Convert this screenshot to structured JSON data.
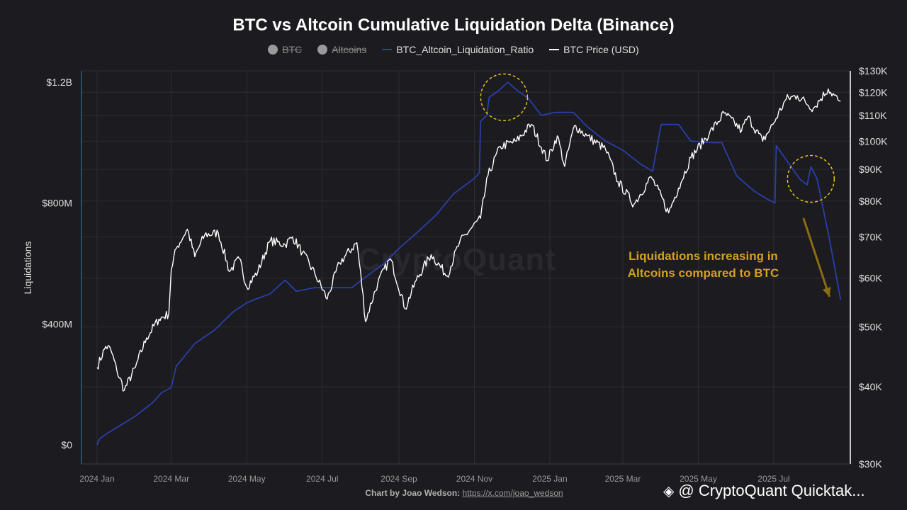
{
  "chart_data": {
    "type": "line",
    "title": "BTC vs Altcoin Cumulative Liquidation Delta (Binance)",
    "legend": [
      {
        "name": "BTC",
        "marker": "dot",
        "hidden": true,
        "color": "#9a9a9a"
      },
      {
        "name": "Altcoins",
        "marker": "dot",
        "hidden": true,
        "color": "#9a9a9a"
      },
      {
        "name": "BTC_Altcoin_Liquidation_Ratio",
        "marker": "line",
        "hidden": false,
        "color": "#2a3fa8"
      },
      {
        "name": "BTC Price (USD)",
        "marker": "line",
        "hidden": false,
        "color": "#ffffff"
      }
    ],
    "legend_position": "top-center",
    "ylabel_left": "Liquidations",
    "yticks_left": [
      {
        "label": "$1.2B",
        "value": 1200
      },
      {
        "label": "$800M",
        "value": 800
      },
      {
        "label": "$400M",
        "value": 400
      },
      {
        "label": "$0",
        "value": 0
      }
    ],
    "ylim_left": [
      0,
      1240
    ],
    "yticks_right": [
      {
        "label": "$130K",
        "value": 130000
      },
      {
        "label": "$120K",
        "value": 120000
      },
      {
        "label": "$110K",
        "value": 110000
      },
      {
        "label": "$100K",
        "value": 100000
      },
      {
        "label": "$90K",
        "value": 90000
      },
      {
        "label": "$80K",
        "value": 80000
      },
      {
        "label": "$70K",
        "value": 70000
      },
      {
        "label": "$60K",
        "value": 60000
      },
      {
        "label": "$50K",
        "value": 50000
      },
      {
        "label": "$40K",
        "value": 40000
      },
      {
        "label": "$30K",
        "value": 30000
      }
    ],
    "ylim_right": [
      30000,
      130000
    ],
    "y_right_scale": "log",
    "xticks": [
      {
        "label": "2024 Jan",
        "date": "2024-01-01"
      },
      {
        "label": "2024 Mar",
        "date": "2024-03-01"
      },
      {
        "label": "2024 May",
        "date": "2024-05-01"
      },
      {
        "label": "2024 Jul",
        "date": "2024-07-01"
      },
      {
        "label": "2024 Sep",
        "date": "2024-09-01"
      },
      {
        "label": "2024 Nov",
        "date": "2024-11-01"
      },
      {
        "label": "2025 Jan",
        "date": "2025-01-01"
      },
      {
        "label": "2025 Mar",
        "date": "2025-03-01"
      },
      {
        "label": "2025 May",
        "date": "2025-05-01"
      },
      {
        "label": "2025 Jul",
        "date": "2025-07-01"
      }
    ],
    "xlim": [
      "2024-01-01",
      "2025-08-25"
    ],
    "grid": true,
    "series": [
      {
        "name": "BTC_Altcoin_Liquidation_Ratio",
        "axis": "left",
        "color": "#2a3fa8",
        "points": [
          [
            "2024-01-01",
            0
          ],
          [
            "2024-01-03",
            20
          ],
          [
            "2024-01-10",
            40
          ],
          [
            "2024-01-20",
            65
          ],
          [
            "2024-02-01",
            95
          ],
          [
            "2024-02-15",
            140
          ],
          [
            "2024-02-22",
            172
          ],
          [
            "2024-03-01",
            190
          ],
          [
            "2024-03-05",
            260
          ],
          [
            "2024-03-20",
            335
          ],
          [
            "2024-04-05",
            380
          ],
          [
            "2024-04-20",
            440
          ],
          [
            "2024-05-01",
            470
          ],
          [
            "2024-05-10",
            485
          ],
          [
            "2024-05-20",
            500
          ],
          [
            "2024-06-01",
            545
          ],
          [
            "2024-06-10",
            508
          ],
          [
            "2024-06-25",
            520
          ],
          [
            "2024-07-01",
            520
          ],
          [
            "2024-07-25",
            520
          ],
          [
            "2024-08-05",
            555
          ],
          [
            "2024-08-20",
            600
          ],
          [
            "2024-09-01",
            650
          ],
          [
            "2024-09-15",
            700
          ],
          [
            "2024-10-01",
            760
          ],
          [
            "2024-10-15",
            830
          ],
          [
            "2024-11-01",
            882
          ],
          [
            "2024-11-05",
            900
          ],
          [
            "2024-11-06",
            1070
          ],
          [
            "2024-11-11",
            1090
          ],
          [
            "2024-11-13",
            1150
          ],
          [
            "2024-11-20",
            1170
          ],
          [
            "2024-11-28",
            1200
          ],
          [
            "2024-12-05",
            1175
          ],
          [
            "2024-12-15",
            1145
          ],
          [
            "2024-12-25",
            1090
          ],
          [
            "2025-01-05",
            1100
          ],
          [
            "2025-01-20",
            1100
          ],
          [
            "2025-02-01",
            1050
          ],
          [
            "2025-02-15",
            1005
          ],
          [
            "2025-03-01",
            975
          ],
          [
            "2025-03-15",
            930
          ],
          [
            "2025-03-25",
            905
          ],
          [
            "2025-04-01",
            1060
          ],
          [
            "2025-04-15",
            1060
          ],
          [
            "2025-04-25",
            1005
          ],
          [
            "2025-05-10",
            1000
          ],
          [
            "2025-05-20",
            1000
          ],
          [
            "2025-06-01",
            890
          ],
          [
            "2025-06-15",
            840
          ],
          [
            "2025-06-25",
            815
          ],
          [
            "2025-07-02",
            800
          ],
          [
            "2025-07-03",
            990
          ],
          [
            "2025-07-15",
            920
          ],
          [
            "2025-07-22",
            880
          ],
          [
            "2025-07-28",
            860
          ],
          [
            "2025-07-31",
            920
          ],
          [
            "2025-08-05",
            880
          ],
          [
            "2025-08-15",
            680
          ],
          [
            "2025-08-22",
            525
          ],
          [
            "2025-08-24",
            480
          ]
        ]
      },
      {
        "name": "BTC Price (USD)",
        "axis": "right",
        "color": "#ffffff",
        "points": [
          [
            "2024-01-01",
            43000
          ],
          [
            "2024-01-08",
            46500
          ],
          [
            "2024-01-12",
            46000
          ],
          [
            "2024-01-17",
            42500
          ],
          [
            "2024-01-23",
            39500
          ],
          [
            "2024-02-01",
            43000
          ],
          [
            "2024-02-10",
            48000
          ],
          [
            "2024-02-20",
            51500
          ],
          [
            "2024-02-28",
            52500
          ],
          [
            "2024-03-01",
            62000
          ],
          [
            "2024-03-05",
            67000
          ],
          [
            "2024-03-14",
            72000
          ],
          [
            "2024-03-20",
            65000
          ],
          [
            "2024-03-28",
            70500
          ],
          [
            "2024-04-08",
            71000
          ],
          [
            "2024-04-17",
            61500
          ],
          [
            "2024-04-25",
            64500
          ],
          [
            "2024-05-01",
            58000
          ],
          [
            "2024-05-10",
            61500
          ],
          [
            "2024-05-20",
            69000
          ],
          [
            "2024-06-01",
            68000
          ],
          [
            "2024-06-07",
            70000
          ],
          [
            "2024-06-15",
            66000
          ],
          [
            "2024-06-25",
            61000
          ],
          [
            "2024-07-05",
            55500
          ],
          [
            "2024-07-15",
            63500
          ],
          [
            "2024-07-29",
            68500
          ],
          [
            "2024-08-05",
            51000
          ],
          [
            "2024-08-15",
            59000
          ],
          [
            "2024-08-25",
            64500
          ],
          [
            "2024-09-06",
            53500
          ],
          [
            "2024-09-15",
            59500
          ],
          [
            "2024-09-27",
            65500
          ],
          [
            "2024-10-10",
            60500
          ],
          [
            "2024-10-20",
            68500
          ],
          [
            "2024-10-30",
            72500
          ],
          [
            "2024-11-06",
            75000
          ],
          [
            "2024-11-12",
            88000
          ],
          [
            "2024-11-22",
            98000
          ],
          [
            "2024-12-05",
            100000
          ],
          [
            "2024-12-17",
            106500
          ],
          [
            "2024-12-30",
            93000
          ],
          [
            "2025-01-07",
            102000
          ],
          [
            "2025-01-13",
            91000
          ],
          [
            "2025-01-21",
            106000
          ],
          [
            "2025-01-31",
            102000
          ],
          [
            "2025-02-15",
            97000
          ],
          [
            "2025-02-25",
            86000
          ],
          [
            "2025-03-10",
            79000
          ],
          [
            "2025-03-24",
            87500
          ],
          [
            "2025-04-07",
            76500
          ],
          [
            "2025-04-15",
            84000
          ],
          [
            "2025-04-25",
            94000
          ],
          [
            "2025-05-10",
            103000
          ],
          [
            "2025-05-22",
            111000
          ],
          [
            "2025-06-05",
            104000
          ],
          [
            "2025-06-10",
            109500
          ],
          [
            "2025-06-22",
            100000
          ],
          [
            "2025-07-01",
            107000
          ],
          [
            "2025-07-11",
            117000
          ],
          [
            "2025-07-20",
            118500
          ],
          [
            "2025-08-02",
            113000
          ],
          [
            "2025-08-14",
            121500
          ],
          [
            "2025-08-22",
            116500
          ],
          [
            "2025-08-24",
            116000
          ]
        ]
      }
    ],
    "annotations": [
      {
        "text": "Liquidations increasing in Altcoins compared to BTC",
        "color": "#d4a11e"
      }
    ],
    "highlight_circles": [
      {
        "date": "2024-11-25",
        "value": 1150,
        "axis": "left"
      },
      {
        "date": "2025-07-31",
        "value": 880,
        "axis": "left"
      }
    ],
    "arrow": {
      "from": [
        "2025-07-25",
        750
      ],
      "to": [
        "2025-08-15",
        490
      ],
      "axis": "left"
    }
  },
  "credit": {
    "label": "Chart by Joao Wedson:",
    "link": "https://x.com/joao_wedson"
  },
  "brand": {
    "text": "@ CryptoQuant Quicktak...",
    "watermark": "CryptoQuant"
  },
  "colors": {
    "background": "#1b1b20",
    "grid": "#2c2c33",
    "ratio_line": "#2a3fa8",
    "price_line": "#ffffff",
    "annotation": "#d4a11e",
    "circle": "#e2c21c"
  }
}
